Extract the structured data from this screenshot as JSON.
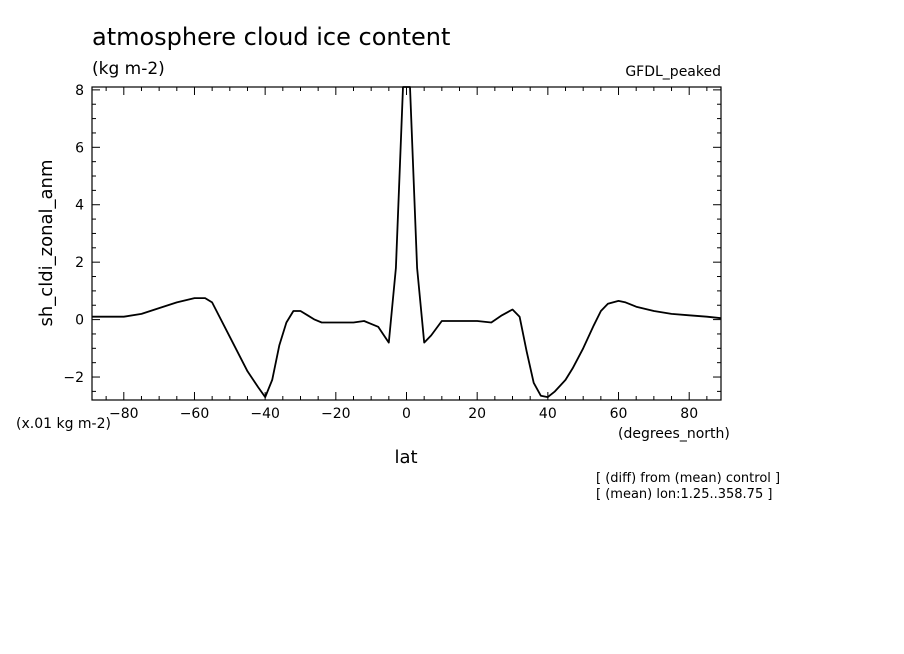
{
  "chart_data": {
    "type": "line",
    "title": "atmosphere cloud ice content",
    "units_label": "(kg m-2)",
    "model_label": "GFDL_peaked",
    "ylabel": "sh_cldi_zonal_anm",
    "xlabel": "lat",
    "x_units": "(degrees_north)",
    "y_scale_note": "(x.01 kg m-2)",
    "annotations": [
      "[ (diff) from (mean) control ]",
      "[ (mean) lon:1.25..358.75 ]"
    ],
    "xlim": [
      -89,
      89
    ],
    "ylim": [
      -2.8,
      8.1
    ],
    "x_ticks": [
      -80,
      -60,
      -40,
      -20,
      0,
      20,
      40,
      60,
      80
    ],
    "y_ticks": [
      -2,
      0,
      2,
      4,
      6,
      8
    ],
    "grid": false,
    "series": [
      {
        "x": [
          -89,
          -85,
          -80,
          -75,
          -70,
          -65,
          -60,
          -57,
          -55,
          -50,
          -45,
          -42,
          -40,
          -38,
          -36,
          -34,
          -32,
          -30,
          -28,
          -26,
          -24,
          -22,
          -20,
          -15,
          -12,
          -10,
          -8,
          -5,
          -3,
          -1,
          1,
          3,
          5,
          7,
          10,
          15,
          20,
          24,
          27,
          30,
          32,
          34,
          36,
          38,
          40,
          42,
          45,
          47,
          50,
          53,
          55,
          57,
          60,
          62,
          65,
          70,
          75,
          80,
          85,
          89
        ],
        "y": [
          0.1,
          0.1,
          0.1,
          0.2,
          0.4,
          0.6,
          0.75,
          0.75,
          0.6,
          -0.6,
          -1.8,
          -2.35,
          -2.7,
          -2.1,
          -0.9,
          -0.1,
          0.3,
          0.3,
          0.15,
          0.0,
          -0.1,
          -0.1,
          -0.1,
          -0.1,
          -0.05,
          -0.15,
          -0.25,
          -0.8,
          1.8,
          8.1,
          8.1,
          1.8,
          -0.8,
          -0.55,
          -0.05,
          -0.05,
          -0.05,
          -0.1,
          0.15,
          0.35,
          0.1,
          -1.1,
          -2.2,
          -2.65,
          -2.7,
          -2.5,
          -2.1,
          -1.7,
          -1.0,
          -0.2,
          0.3,
          0.55,
          0.65,
          0.6,
          0.45,
          0.3,
          0.2,
          0.15,
          0.1,
          0.05
        ]
      }
    ]
  }
}
